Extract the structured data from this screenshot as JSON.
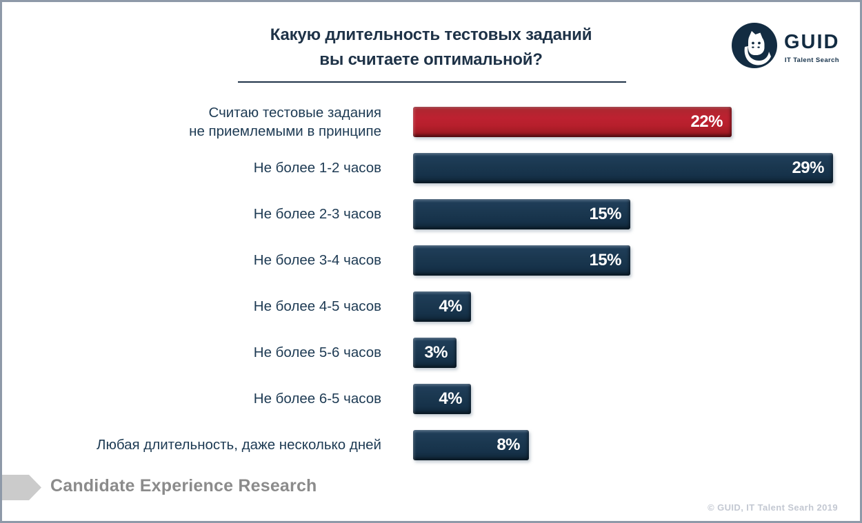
{
  "header": {
    "title": "Какую длительность тестовых заданий\nвы считаете оптимальной?"
  },
  "logo": {
    "brand": "GUID",
    "tagline": "IT Talent Search",
    "icon": "cat-in-circle-icon",
    "color": "#132c42"
  },
  "chart_data": {
    "type": "bar",
    "orientation": "horizontal",
    "title": "Какую длительность тестовых заданий вы считаете оптимальной?",
    "unit": "%",
    "xlim": [
      0,
      29
    ],
    "grid": false,
    "legend": false,
    "categories": [
      "Считаю тестовые задания\nне приемлемыми в принципе",
      "Не более 1-2 часов",
      "Не более 2-3 часов",
      "Не более 3-4 часов",
      "Не более 4-5 часов",
      "Не более 5-6 часов",
      "Не более 6-5 часов",
      "Любая длительность, даже несколько дней"
    ],
    "values": [
      22,
      29,
      15,
      15,
      4,
      3,
      4,
      8
    ],
    "value_labels": [
      "22%",
      "29%",
      "15%",
      "15%",
      "4%",
      "3%",
      "4%",
      "8%"
    ],
    "bar_colors": [
      "red",
      "navy",
      "navy",
      "navy",
      "navy",
      "navy",
      "navy",
      "navy"
    ],
    "colors": {
      "red": "#b5202c",
      "navy": "#16324a"
    }
  },
  "footer": {
    "caption": "Candidate Experience Research",
    "copyright": "© GUID, IT Talent Searh 2019"
  }
}
